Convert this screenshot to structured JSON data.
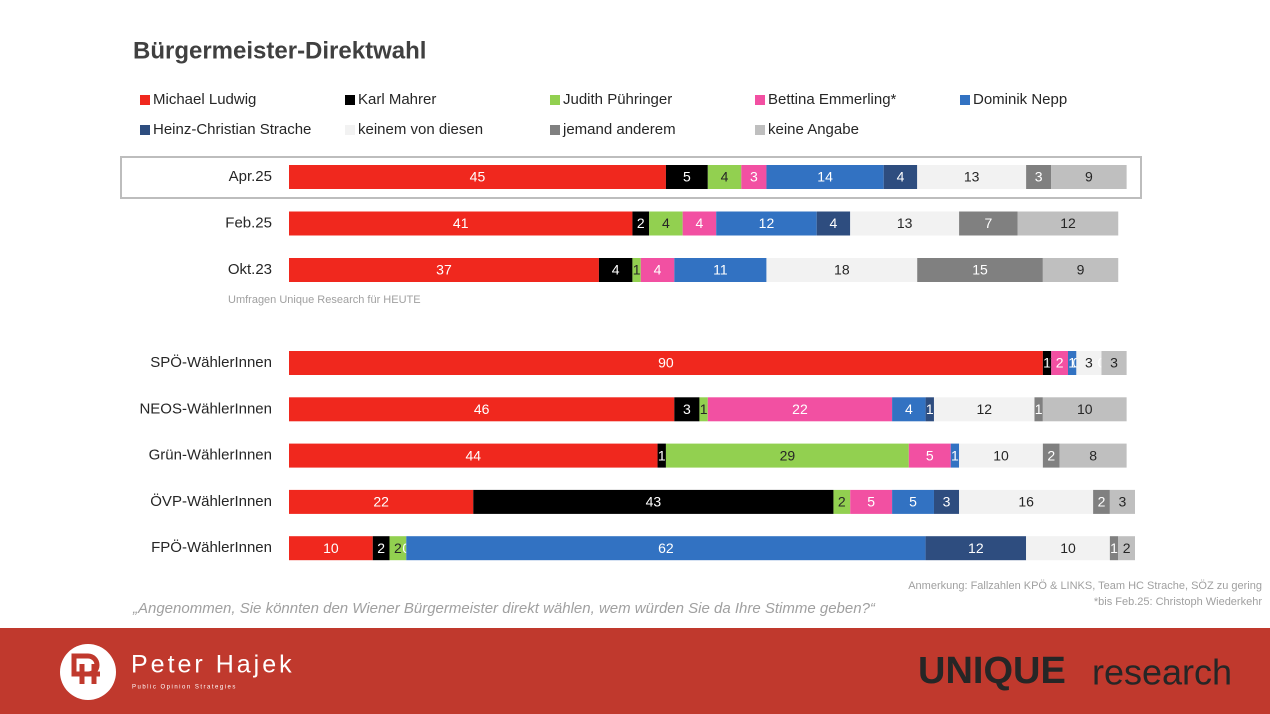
{
  "chart_data": [
    {
      "type": "bar",
      "orientation": "horizontal",
      "stacked": true,
      "title": "Bürgermeister-Direktwahl",
      "source": "Umfragen Unique Research für HEUTE",
      "categories": [
        "Apr.25",
        "Feb.25",
        "Okt.23"
      ],
      "series": [
        {
          "name": "Michael Ludwig",
          "color": "#f0281e",
          "values": [
            45,
            41,
            37
          ]
        },
        {
          "name": "Karl Mahrer",
          "color": "#000000",
          "values": [
            5,
            2,
            4
          ]
        },
        {
          "name": "Judith Pühringer",
          "color": "#92d050",
          "values": [
            4,
            4,
            1
          ]
        },
        {
          "name": "Bettina Emmerling*",
          "color": "#f250a2",
          "values": [
            3,
            4,
            4
          ]
        },
        {
          "name": "Dominik Nepp",
          "color": "#3272c2",
          "values": [
            14,
            12,
            11
          ]
        },
        {
          "name": "Heinz-Christian Strache",
          "color": "#2e4d7f",
          "values": [
            4,
            4,
            null
          ]
        },
        {
          "name": "keinem von diesen",
          "color": "#f2f2f2",
          "values": [
            13,
            13,
            18
          ]
        },
        {
          "name": "jemand anderem",
          "color": "#808080",
          "values": [
            3,
            7,
            15
          ]
        },
        {
          "name": "keine Angabe",
          "color": "#bfbfbf",
          "values": [
            9,
            12,
            9
          ]
        }
      ]
    },
    {
      "type": "bar",
      "orientation": "horizontal",
      "stacked": true,
      "categories": [
        "SPÖ-WählerInnen",
        "NEOS-WählerInnen",
        "Grün-WählerInnen",
        "ÖVP-WählerInnen",
        "FPÖ-WählerInnen"
      ],
      "series": [
        {
          "values": [
            90,
            46,
            44,
            22,
            10
          ]
        },
        {
          "values": [
            1,
            3,
            1,
            43,
            2
          ]
        },
        {
          "values": [
            0,
            1,
            29,
            2,
            2
          ]
        },
        {
          "values": [
            2,
            22,
            5,
            5,
            0
          ]
        },
        {
          "values": [
            1,
            4,
            1,
            5,
            62
          ]
        },
        {
          "values": [
            0,
            1,
            null,
            3,
            12
          ]
        },
        {
          "values": [
            3,
            12,
            10,
            16,
            10
          ]
        },
        {
          "values": [
            0,
            1,
            2,
            2,
            1
          ]
        },
        {
          "values": [
            3,
            10,
            8,
            3,
            2
          ]
        }
      ]
    }
  ],
  "notes": {
    "remark": "Anmerkung: Fallzahlen KPÖ & LINKS, Team HC Strache, SÖZ zu gering",
    "footnote": "*bis Feb.25: Christoph Wiederkehr",
    "question": "„Angenommen, Sie könnten den Wiener Bürgermeister direkt wählen, wem würden Sie da Ihre Stimme geben?“"
  },
  "footer": {
    "brand": "Peter Hajek",
    "tagline": "Public Opinion Strategies",
    "logo_bold": "UNIQUE",
    "logo_light": "research"
  }
}
